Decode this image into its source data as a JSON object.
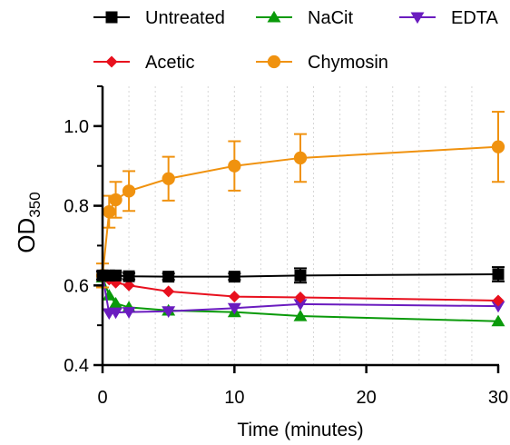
{
  "chart_data": {
    "type": "line",
    "xlabel": "Time (minutes)",
    "ylabel": {
      "main": "OD",
      "sub": "350"
    },
    "xlim": [
      0,
      30
    ],
    "ylim": [
      0.4,
      1.1
    ],
    "xticks": [
      "0",
      "10",
      "20",
      "30"
    ],
    "yticks": [
      "0.4",
      "0.6",
      "0.8",
      "1.0"
    ],
    "xtick_values": [
      0,
      10,
      20,
      30
    ],
    "ytick_values": [
      0.4,
      0.6,
      0.8,
      1.0
    ],
    "grid": "vertical dotted",
    "legend_position": "top",
    "series": [
      {
        "name": "Untreated",
        "color": "#000000",
        "marker": "square",
        "points": [
          {
            "x": 0,
            "y": 0.625,
            "err": 0.01
          },
          {
            "x": 0.5,
            "y": 0.625,
            "err": 0.008
          },
          {
            "x": 1,
            "y": 0.625,
            "err": 0.008
          },
          {
            "x": 2,
            "y": 0.623,
            "err": 0.008
          },
          {
            "x": 5,
            "y": 0.622,
            "err": 0.008
          },
          {
            "x": 10,
            "y": 0.622,
            "err": 0.008
          },
          {
            "x": 15,
            "y": 0.625,
            "err": 0.018
          },
          {
            "x": 30,
            "y": 0.628,
            "err": 0.018
          }
        ]
      },
      {
        "name": "NaCit",
        "color": "#0a9a0a",
        "marker": "triangle-up",
        "points": [
          {
            "x": 0,
            "y": 0.62,
            "err": 0
          },
          {
            "x": 0.5,
            "y": 0.575,
            "err": 0
          },
          {
            "x": 1,
            "y": 0.555,
            "err": 0
          },
          {
            "x": 2,
            "y": 0.545,
            "err": 0
          },
          {
            "x": 5,
            "y": 0.537,
            "err": 0
          },
          {
            "x": 10,
            "y": 0.533,
            "err": 0
          },
          {
            "x": 15,
            "y": 0.523,
            "err": 0
          },
          {
            "x": 30,
            "y": 0.51,
            "err": 0
          }
        ]
      },
      {
        "name": "EDTA",
        "color": "#6a1cbf",
        "marker": "triangle-down",
        "points": [
          {
            "x": 0,
            "y": 0.625,
            "err": 0
          },
          {
            "x": 0.5,
            "y": 0.53,
            "err": 0
          },
          {
            "x": 1,
            "y": 0.532,
            "err": 0
          },
          {
            "x": 2,
            "y": 0.533,
            "err": 0
          },
          {
            "x": 5,
            "y": 0.535,
            "err": 0
          },
          {
            "x": 10,
            "y": 0.543,
            "err": 0
          },
          {
            "x": 15,
            "y": 0.553,
            "err": 0
          },
          {
            "x": 30,
            "y": 0.548,
            "err": 0
          }
        ]
      },
      {
        "name": "Acetic",
        "color": "#e8101e",
        "marker": "diamond",
        "points": [
          {
            "x": 0,
            "y": 0.625,
            "err": 0
          },
          {
            "x": 0.5,
            "y": 0.615,
            "err": 0
          },
          {
            "x": 1,
            "y": 0.607,
            "err": 0
          },
          {
            "x": 2,
            "y": 0.6,
            "err": 0
          },
          {
            "x": 5,
            "y": 0.585,
            "err": 0
          },
          {
            "x": 10,
            "y": 0.572,
            "err": 0
          },
          {
            "x": 15,
            "y": 0.57,
            "err": 0
          },
          {
            "x": 30,
            "y": 0.562,
            "err": 0
          }
        ]
      },
      {
        "name": "Chymosin",
        "color": "#f0920f",
        "marker": "circle",
        "points": [
          {
            "x": 0,
            "y": 0.625,
            "err": 0.03
          },
          {
            "x": 0.5,
            "y": 0.785,
            "err": 0.04
          },
          {
            "x": 1,
            "y": 0.815,
            "err": 0.045
          },
          {
            "x": 2,
            "y": 0.837,
            "err": 0.05
          },
          {
            "x": 5,
            "y": 0.868,
            "err": 0.055
          },
          {
            "x": 10,
            "y": 0.9,
            "err": 0.062
          },
          {
            "x": 15,
            "y": 0.92,
            "err": 0.06
          },
          {
            "x": 30,
            "y": 0.948,
            "err": 0.088
          }
        ]
      }
    ]
  }
}
